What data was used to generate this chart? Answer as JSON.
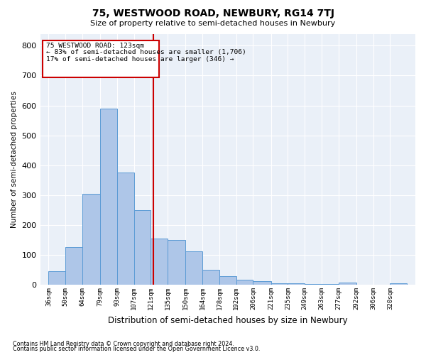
{
  "title": "75, WESTWOOD ROAD, NEWBURY, RG14 7TJ",
  "subtitle": "Size of property relative to semi-detached houses in Newbury",
  "xlabel": "Distribution of semi-detached houses by size in Newbury",
  "ylabel": "Number of semi-detached properties",
  "footnote1": "Contains HM Land Registry data © Crown copyright and database right 2024.",
  "footnote2": "Contains public sector information licensed under the Open Government Licence v3.0.",
  "categories": [
    "36sqm",
    "50sqm",
    "64sqm",
    "79sqm",
    "93sqm",
    "107sqm",
    "121sqm",
    "135sqm",
    "150sqm",
    "164sqm",
    "178sqm",
    "192sqm",
    "206sqm",
    "221sqm",
    "235sqm",
    "249sqm",
    "263sqm",
    "277sqm",
    "292sqm",
    "306sqm",
    "320sqm"
  ],
  "values": [
    45,
    126,
    305,
    590,
    375,
    250,
    155,
    150,
    113,
    50,
    30,
    18,
    12,
    6,
    4,
    2,
    2,
    8,
    1,
    1,
    4
  ],
  "bar_color": "#aec6e8",
  "bar_edge_color": "#5b9bd5",
  "background_color": "#eaf0f8",
  "grid_color": "#ffffff",
  "annotation_box_text1": "75 WESTWOOD ROAD: 123sqm",
  "annotation_box_text2": "← 83% of semi-detached houses are smaller (1,706)",
  "annotation_box_text3": "17% of semi-detached houses are larger (346) →",
  "annotation_box_color": "#ffffff",
  "annotation_box_edge_color": "#cc0000",
  "vline_x": 123,
  "vline_color": "#cc0000",
  "ylim": [
    0,
    840
  ],
  "yticks": [
    0,
    100,
    200,
    300,
    400,
    500,
    600,
    700,
    800
  ],
  "bin_starts": [
    36,
    50,
    64,
    79,
    93,
    107,
    121,
    135,
    150,
    164,
    178,
    192,
    206,
    221,
    235,
    249,
    263,
    277,
    292,
    306,
    320
  ],
  "bin_ends": [
    50,
    64,
    79,
    93,
    107,
    121,
    135,
    150,
    164,
    178,
    192,
    206,
    221,
    235,
    249,
    263,
    277,
    292,
    306,
    320,
    334
  ]
}
